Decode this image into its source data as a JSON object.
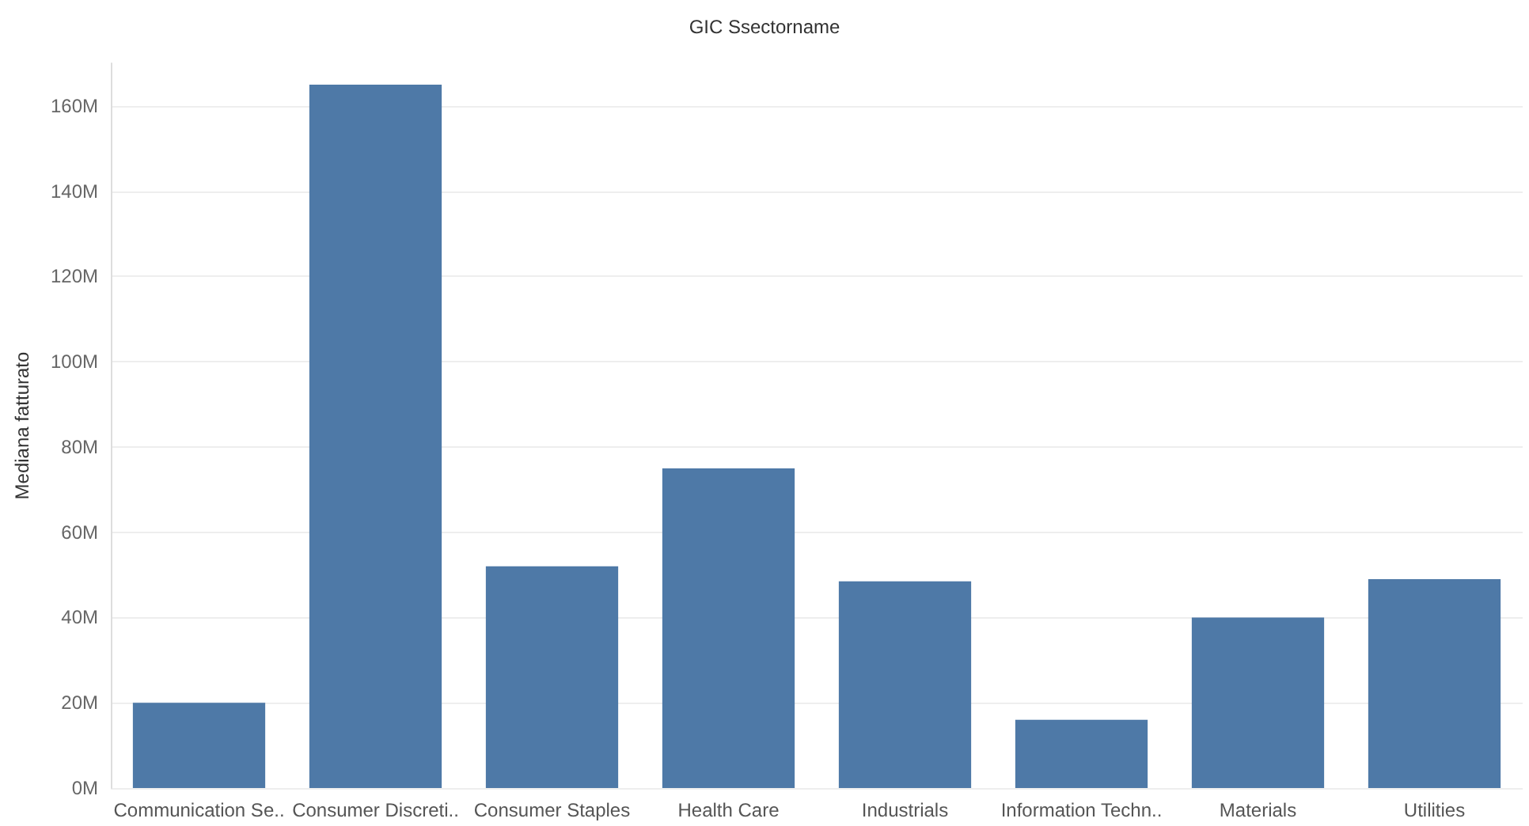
{
  "chart_data": {
    "type": "bar",
    "title": "GIC Ssectorname",
    "ylabel": "Mediana fatturato",
    "categories": [
      "Communication Se..",
      "Consumer Discreti..",
      "Consumer Staples",
      "Health Care",
      "Industrials",
      "Information Techn..",
      "Materials",
      "Utilities"
    ],
    "values": [
      20,
      165,
      52,
      75,
      48.5,
      16,
      40,
      49
    ],
    "color": "#4e79a7",
    "ylim": [
      0,
      170
    ],
    "yticks": [
      {
        "value": 0,
        "label": "0M"
      },
      {
        "value": 20,
        "label": "20M"
      },
      {
        "value": 40,
        "label": "40M"
      },
      {
        "value": 60,
        "label": "60M"
      },
      {
        "value": 80,
        "label": "80M"
      },
      {
        "value": 100,
        "label": "100M"
      },
      {
        "value": 120,
        "label": "120M"
      },
      {
        "value": 140,
        "label": "140M"
      },
      {
        "value": 160,
        "label": "160M"
      }
    ],
    "grid": "y"
  }
}
